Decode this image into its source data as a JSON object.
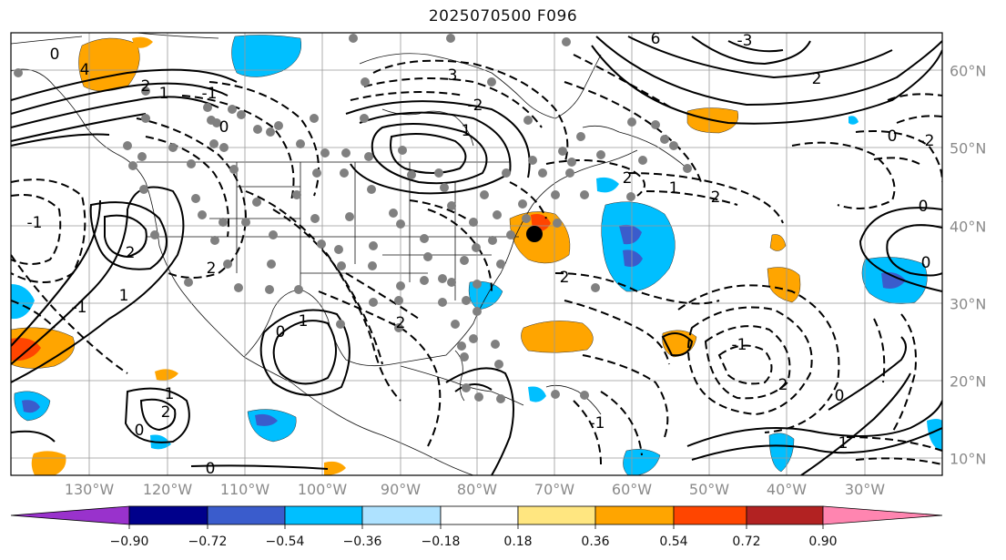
{
  "title": "2025070500 F096",
  "lon_labels": [
    "130°W",
    "120°W",
    "110°W",
    "100°W",
    "90°W",
    "80°W",
    "70°W",
    "60°W",
    "50°W",
    "40°W",
    "30°W"
  ],
  "lat_labels": [
    "60°N",
    "50°N",
    "40°N",
    "30°N",
    "20°N",
    "10°N"
  ],
  "colorbar": {
    "colors": [
      "#9932cc",
      "#00008b",
      "#3a5ccc",
      "#00bfff",
      "#aee2ff",
      "#ffffff",
      "#ffe680",
      "#ffa500",
      "#ff4500",
      "#b22222",
      "#ff85b0"
    ],
    "tick_labels": [
      "−0.90",
      "−0.72",
      "−0.54",
      "−0.36",
      "−0.18",
      "0.18",
      "0.36",
      "0.54",
      "0.72",
      "0.90"
    ]
  },
  "contour_labels": [
    "0",
    "2",
    "4",
    "-1",
    "1",
    "3",
    "6",
    "-3",
    "2",
    "0",
    "-2",
    "1",
    "2",
    "0",
    "-1",
    "2",
    "1",
    "0",
    "2",
    "-1",
    "-2",
    "0",
    "1",
    "2",
    "0",
    "-1",
    "2",
    "1",
    "0",
    "-1",
    "2",
    "0",
    "-2",
    "1",
    "0",
    "2",
    "1"
  ],
  "colors": {
    "gridline": "#999999",
    "station_dot": "#808080",
    "target_dot": "#000000"
  }
}
